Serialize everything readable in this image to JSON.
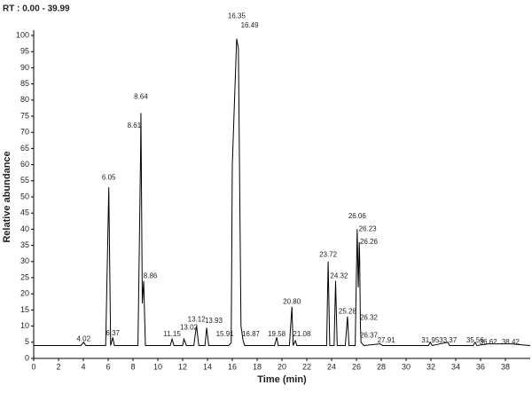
{
  "chart_data": {
    "type": "line",
    "title": "RT : 0.00 - 39.99",
    "x_label": "Time (min)",
    "y_label": "Relative abundance",
    "color": "#000000",
    "label_color": "#3a7a3a",
    "xlim": [
      0,
      40
    ],
    "xticks": [
      0,
      2,
      4,
      6,
      8,
      10,
      12,
      14,
      16,
      18,
      20,
      22,
      24,
      26,
      28,
      30,
      32,
      34,
      36,
      38
    ],
    "ylim": [
      0,
      100
    ],
    "yticks": [
      0,
      5,
      10,
      15,
      20,
      25,
      30,
      35,
      40,
      45,
      50,
      55,
      60,
      65,
      70,
      75,
      80,
      85,
      90,
      95,
      100
    ],
    "x": [
      0,
      3.8,
      4.02,
      4.2,
      5.8,
      6.05,
      6.2,
      6.37,
      6.5,
      8.4,
      8.61,
      8.64,
      8.75,
      8.86,
      9.0,
      11.0,
      11.15,
      11.3,
      12.0,
      12.1,
      12.3,
      12.9,
      13.02,
      13.12,
      13.3,
      13.8,
      13.93,
      14.1,
      15.7,
      15.91,
      16.0,
      16.35,
      16.49,
      16.7,
      16.87,
      17.0,
      19.4,
      19.58,
      19.7,
      20.6,
      20.8,
      20.9,
      21.08,
      21.2,
      23.6,
      23.72,
      23.85,
      24.2,
      24.32,
      24.45,
      25.1,
      25.28,
      25.4,
      25.9,
      26.06,
      26.15,
      26.23,
      26.26,
      26.32,
      26.37,
      26.6,
      27.91,
      28.1,
      31.8,
      31.95,
      32.1,
      33.37,
      33.5,
      35.4,
      35.56,
      35.7,
      36.62,
      38.42,
      40
    ],
    "values": [
      4,
      4,
      5,
      4,
      4,
      53,
      4,
      6.5,
      4,
      4,
      63,
      76,
      17,
      24,
      4,
      4,
      6,
      4,
      4,
      6,
      4,
      4,
      7.5,
      10,
      4,
      4,
      9.5,
      4,
      4,
      4.8,
      60,
      99,
      96,
      10,
      5.5,
      4,
      4,
      6.5,
      4,
      4,
      16,
      4,
      5.5,
      4,
      4,
      30,
      4,
      4,
      24,
      4,
      4,
      13,
      4,
      4,
      40,
      22,
      36,
      31,
      10,
      5,
      4,
      4.5,
      4,
      4,
      5,
      4,
      5,
      4,
      4,
      5,
      4,
      4.5,
      4.5,
      4
    ],
    "annotations": [
      {
        "text": "4.02",
        "x": 4.02,
        "y": 6
      },
      {
        "text": "6.05",
        "x": 6.05,
        "y": 56
      },
      {
        "text": "6.37",
        "x": 6.37,
        "y": 7.7
      },
      {
        "text": "8.61",
        "x": 8.1,
        "y": 72
      },
      {
        "text": "8.64",
        "x": 8.64,
        "y": 81
      },
      {
        "text": "8.86",
        "x": 9.4,
        "y": 25.5
      },
      {
        "text": "11.15",
        "x": 11.15,
        "y": 7.5
      },
      {
        "text": "13.02",
        "x": 12.5,
        "y": 9.5
      },
      {
        "text": "13.12",
        "x": 13.12,
        "y": 12
      },
      {
        "text": "13.93",
        "x": 14.5,
        "y": 11.5
      },
      {
        "text": "15.91",
        "x": 15.4,
        "y": 7.5
      },
      {
        "text": "16.35",
        "x": 16.35,
        "y": 106
      },
      {
        "text": "16.49",
        "x": 17.4,
        "y": 103
      },
      {
        "text": "16.87",
        "x": 17.5,
        "y": 7.5
      },
      {
        "text": "19.58",
        "x": 19.58,
        "y": 7.5
      },
      {
        "text": "20.80",
        "x": 20.8,
        "y": 17.5
      },
      {
        "text": "21.08",
        "x": 21.6,
        "y": 7.5
      },
      {
        "text": "23.72",
        "x": 23.72,
        "y": 32
      },
      {
        "text": "24.32",
        "x": 24.6,
        "y": 25.5
      },
      {
        "text": "25.28",
        "x": 25.28,
        "y": 14.5
      },
      {
        "text": "26.06",
        "x": 26.06,
        "y": 44
      },
      {
        "text": "26.23",
        "x": 26.9,
        "y": 40
      },
      {
        "text": "26.26",
        "x": 27.0,
        "y": 36
      },
      {
        "text": "26.32",
        "x": 27.0,
        "y": 12.5
      },
      {
        "text": "26.37",
        "x": 27.0,
        "y": 7
      },
      {
        "text": "27.91",
        "x": 28.4,
        "y": 5.5
      },
      {
        "text": "31.95",
        "x": 31.95,
        "y": 5.5
      },
      {
        "text": "33.37",
        "x": 33.37,
        "y": 5.5
      },
      {
        "text": "35.56",
        "x": 35.56,
        "y": 5.5
      },
      {
        "text": "36.62",
        "x": 36.62,
        "y": 5
      },
      {
        "text": "38.42",
        "x": 38.42,
        "y": 5
      }
    ]
  }
}
